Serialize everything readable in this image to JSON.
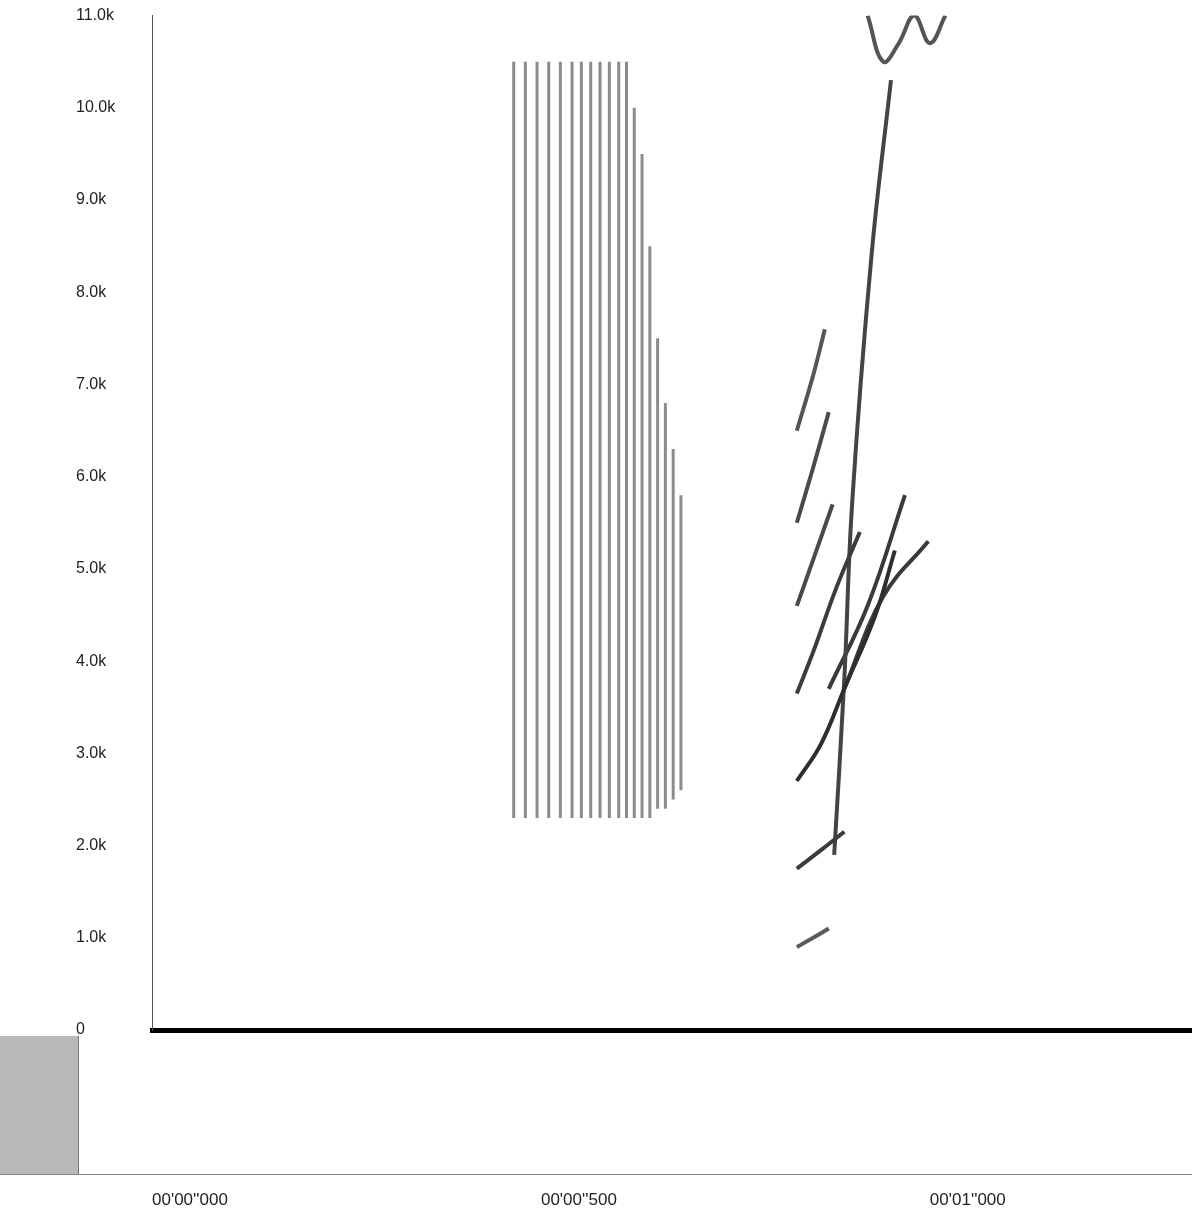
{
  "chart_data": {
    "type": "spectrogram",
    "xlim": [
      0,
      1.337
    ],
    "ylim": [
      0,
      11000
    ],
    "xticks": [
      {
        "value": 0,
        "label": "00'00''000"
      },
      {
        "value": 0.5,
        "label": "00'00''500"
      },
      {
        "value": 1.0,
        "label": "00'01''000"
      }
    ],
    "yticks": [
      0,
      {
        "value": 1000,
        "label": "1.0k"
      },
      {
        "value": 2000,
        "label": "2.0k"
      },
      {
        "value": 3000,
        "label": "3.0k"
      },
      {
        "value": 4000,
        "label": "4.0k"
      },
      {
        "value": 5000,
        "label": "5.0k"
      },
      {
        "value": 6000,
        "label": "6.0k"
      },
      {
        "value": 7000,
        "label": "7.0k"
      },
      {
        "value": 8000,
        "label": "8.0k"
      },
      {
        "value": 9000,
        "label": "9.0k"
      },
      {
        "value": 10000,
        "label": "10.0k"
      },
      {
        "value": 11000,
        "label": "11.0k"
      }
    ],
    "grid": false,
    "clicks": {
      "color": "#8c8c8c",
      "x": [
        0.465,
        0.48,
        0.495,
        0.51,
        0.525,
        0.54,
        0.552,
        0.564,
        0.576,
        0.588,
        0.6,
        0.61,
        0.62,
        0.63,
        0.64,
        0.65,
        0.66,
        0.67,
        0.68
      ],
      "low": [
        2300,
        2300,
        2300,
        2300,
        2300,
        2300,
        2300,
        2300,
        2300,
        2300,
        2300,
        2300,
        2300,
        2300,
        2300,
        2400,
        2400,
        2500,
        2600
      ],
      "high": [
        10500,
        10500,
        10500,
        10500,
        10500,
        10500,
        10500,
        10500,
        10500,
        10500,
        10500,
        10500,
        10000,
        9500,
        8500,
        7500,
        6800,
        6300,
        5800
      ]
    },
    "series": [
      {
        "color": "#3c3c3c",
        "x": [
          0.829,
          0.86,
          0.89
        ],
        "values": [
          1750,
          1950,
          2150
        ]
      },
      {
        "color": "#5a5a5a",
        "x": [
          0.829,
          0.85,
          0.87
        ],
        "values": [
          900,
          1000,
          1100
        ]
      },
      {
        "color": "#2e2e2e",
        "x": [
          0.829,
          0.86,
          0.89,
          0.93,
          0.955
        ],
        "values": [
          2700,
          3100,
          3700,
          4500,
          5200
        ]
      },
      {
        "color": "#3c3c3c",
        "x": [
          0.829,
          0.85,
          0.88,
          0.91
        ],
        "values": [
          3650,
          4100,
          4800,
          5400
        ]
      },
      {
        "color": "#4a4a4a",
        "x": [
          0.829,
          0.85,
          0.875
        ],
        "values": [
          4600,
          5100,
          5700
        ]
      },
      {
        "color": "#4a4a4a",
        "x": [
          0.829,
          0.85,
          0.87
        ],
        "values": [
          5500,
          6100,
          6700
        ]
      },
      {
        "color": "#555555",
        "x": [
          0.829,
          0.85,
          0.865
        ],
        "values": [
          6500,
          7100,
          7600
        ]
      },
      {
        "color": "#444444",
        "x": [
          0.877,
          0.89,
          0.9,
          0.925,
          0.95
        ],
        "values": [
          1900,
          3800,
          5700,
          8400,
          10300
        ]
      },
      {
        "color": "#3a3a3a",
        "x": [
          0.87,
          0.92,
          0.968
        ],
        "values": [
          3700,
          4600,
          5800
        ]
      },
      {
        "color": "#3a3a3a",
        "x": [
          0.89,
          0.94,
          0.998
        ],
        "values": [
          3700,
          4700,
          5300
        ]
      },
      {
        "color": "#555555",
        "x": [
          0.92,
          0.94,
          0.96,
          0.98,
          1.0,
          1.02
        ],
        "values": [
          11000,
          10500,
          10700,
          11000,
          10700,
          11000
        ]
      }
    ]
  }
}
